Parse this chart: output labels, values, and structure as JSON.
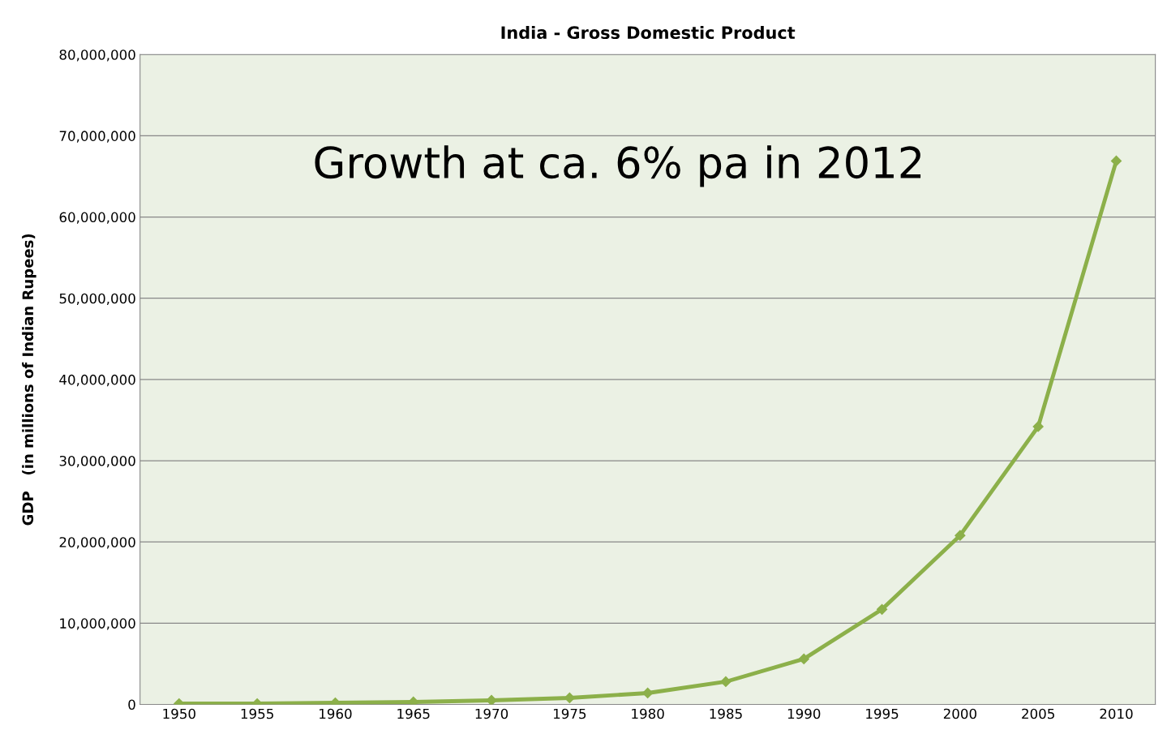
{
  "chart_data": {
    "type": "line",
    "title": "India - Gross Domestic Product",
    "ylabel": "GDP   (in millions of Indian Rupees)",
    "categories": [
      "1950",
      "1955",
      "1960",
      "1965",
      "1970",
      "1975",
      "1980",
      "1985",
      "1990",
      "1995",
      "2000",
      "2005",
      "2010"
    ],
    "series": [
      {
        "color": "#8cb04a",
        "values": [
          100000,
          100000,
          200000,
          300000,
          500000,
          800000,
          1400000,
          2800000,
          5600000,
          11700000,
          20800000,
          34200000,
          66900000
        ]
      }
    ],
    "ylim": [
      0,
      80000000
    ],
    "yticks": [
      0,
      {
        "value": 10000000,
        "label": "10,000,000"
      },
      {
        "value": 20000000,
        "label": "20,000,000"
      },
      {
        "value": 30000000,
        "label": "30,000,000"
      },
      {
        "value": 40000000,
        "label": "40,000,000"
      },
      {
        "value": 50000000,
        "label": "50,000,000"
      },
      {
        "value": 60000000,
        "label": "60,000,000"
      },
      {
        "value": 70000000,
        "label": "70,000,000"
      },
      {
        "value": 80000000,
        "label": "80,000,000"
      }
    ],
    "annotations": [
      "Growth at ca. 6% pa in 2012"
    ],
    "grid": "y",
    "marker": "diamond",
    "line_style": "solid",
    "legend": false
  }
}
